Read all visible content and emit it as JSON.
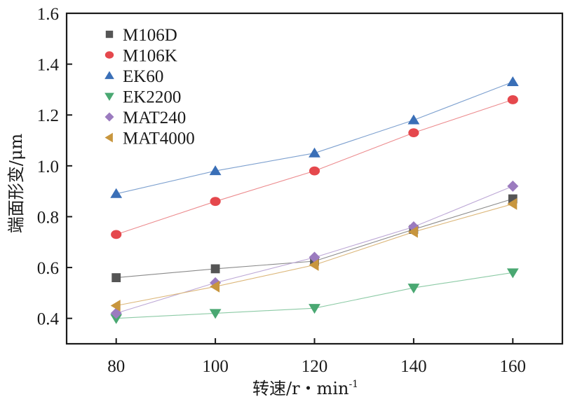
{
  "chart_data": {
    "type": "line",
    "title": "",
    "xlabel": "转速/r・min",
    "xlabel_superscript": "-1",
    "ylabel": "端面形变/μm",
    "xlim": [
      70,
      170
    ],
    "ylim": [
      0.3,
      1.6
    ],
    "xticks": [
      80,
      100,
      120,
      140,
      160
    ],
    "xtick_labels": [
      "80",
      "100",
      "120",
      "140",
      "160"
    ],
    "yticks": [
      0.4,
      0.6,
      0.8,
      1.0,
      1.2,
      1.4,
      1.6
    ],
    "ytick_labels": [
      "0.4",
      "0.6",
      "0.8",
      "1.0",
      "1.2",
      "1.4",
      "1.6"
    ],
    "grid": false,
    "legend_position": "top-left",
    "x": [
      80,
      100,
      120,
      140,
      160
    ],
    "series": [
      {
        "name": "M106D",
        "marker": "square",
        "color": "#555555",
        "line_color": "#8a8a8a",
        "values": [
          0.56,
          0.595,
          0.625,
          0.75,
          0.87
        ]
      },
      {
        "name": "M106K",
        "marker": "circle",
        "color": "#e5484d",
        "line_color": "#ec8a8d",
        "values": [
          0.73,
          0.86,
          0.98,
          1.13,
          1.26
        ]
      },
      {
        "name": "EK60",
        "marker": "triangle-up",
        "color": "#3a6fb7",
        "line_color": "#7da0cf",
        "values": [
          0.89,
          0.98,
          1.05,
          1.18,
          1.33
        ]
      },
      {
        "name": "EK2200",
        "marker": "triangle-down",
        "color": "#4aa872",
        "line_color": "#8ccaa5",
        "values": [
          0.4,
          0.42,
          0.44,
          0.52,
          0.58
        ]
      },
      {
        "name": "MAT240",
        "marker": "diamond",
        "color": "#9b7bbf",
        "line_color": "#bda8d6",
        "values": [
          0.42,
          0.54,
          0.64,
          0.76,
          0.92
        ]
      },
      {
        "name": "MAT4000",
        "marker": "triangle-left",
        "color": "#c8963e",
        "line_color": "#dcb77a",
        "values": [
          0.45,
          0.525,
          0.61,
          0.74,
          0.85
        ]
      }
    ]
  }
}
